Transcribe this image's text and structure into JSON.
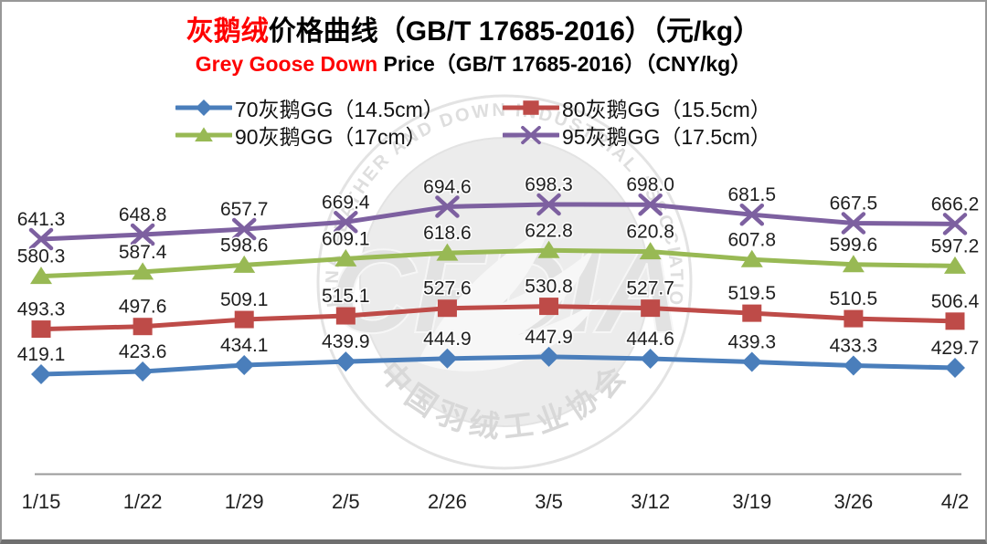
{
  "title": {
    "highlight": "灰鹅绒",
    "rest": "价格曲线（GB/T 17685-2016）（元/kg）"
  },
  "subtitle": {
    "highlight": "Grey Goose Down",
    "rest": " Price（GB/T 17685-2016）（CNY/kg）"
  },
  "watermark": {
    "arc_text_top": "CHINA FEATHER AND DOWN INDUSTRIAL ASSOCIATION",
    "arc_text_bottom": "中国羽绒工业协会",
    "center_text": "CFDIA"
  },
  "colors": {
    "series_70": "#4a7ebb",
    "series_80": "#be4b48",
    "series_90": "#98b954",
    "series_95": "#7d60a0",
    "axis_line": "#9a9a9a",
    "label_text": "#1f1f1f",
    "title_accent": "#fe0000"
  },
  "chart_data": {
    "type": "line",
    "title": "灰鹅绒价格曲线（GB/T 17685-2016）（元/kg）",
    "subtitle": "Grey Goose Down Price（GB/T 17685-2016）（CNY/kg）",
    "xlabel": "",
    "ylabel": "",
    "grid": false,
    "legend_position": "top",
    "data_labels": true,
    "categories": [
      "1/15",
      "1/22",
      "1/29",
      "2/5",
      "2/26",
      "3/5",
      "3/12",
      "3/19",
      "3/26",
      "4/2"
    ],
    "series": [
      {
        "name": "70灰鹅GG（14.5cm）",
        "marker": "diamond",
        "color": "#4a7ebb",
        "values": [
          419.1,
          423.6,
          434.1,
          439.9,
          444.9,
          447.9,
          444.6,
          439.3,
          433.3,
          429.7
        ]
      },
      {
        "name": "80灰鹅GG（15.5cm）",
        "marker": "square",
        "color": "#be4b48",
        "values": [
          493.3,
          497.6,
          509.1,
          515.1,
          527.6,
          530.8,
          527.7,
          519.5,
          510.5,
          506.4
        ]
      },
      {
        "name": "90灰鹅GG（17cm）",
        "marker": "triangle",
        "color": "#98b954",
        "values": [
          580.3,
          587.4,
          598.6,
          609.1,
          618.6,
          622.8,
          620.8,
          607.8,
          599.6,
          597.2
        ]
      },
      {
        "name": "95灰鹅GG（17.5cm）",
        "marker": "x",
        "color": "#7d60a0",
        "values": [
          641.3,
          648.8,
          657.7,
          669.4,
          694.6,
          698.3,
          698.0,
          681.5,
          667.5,
          666.2
        ]
      }
    ]
  }
}
